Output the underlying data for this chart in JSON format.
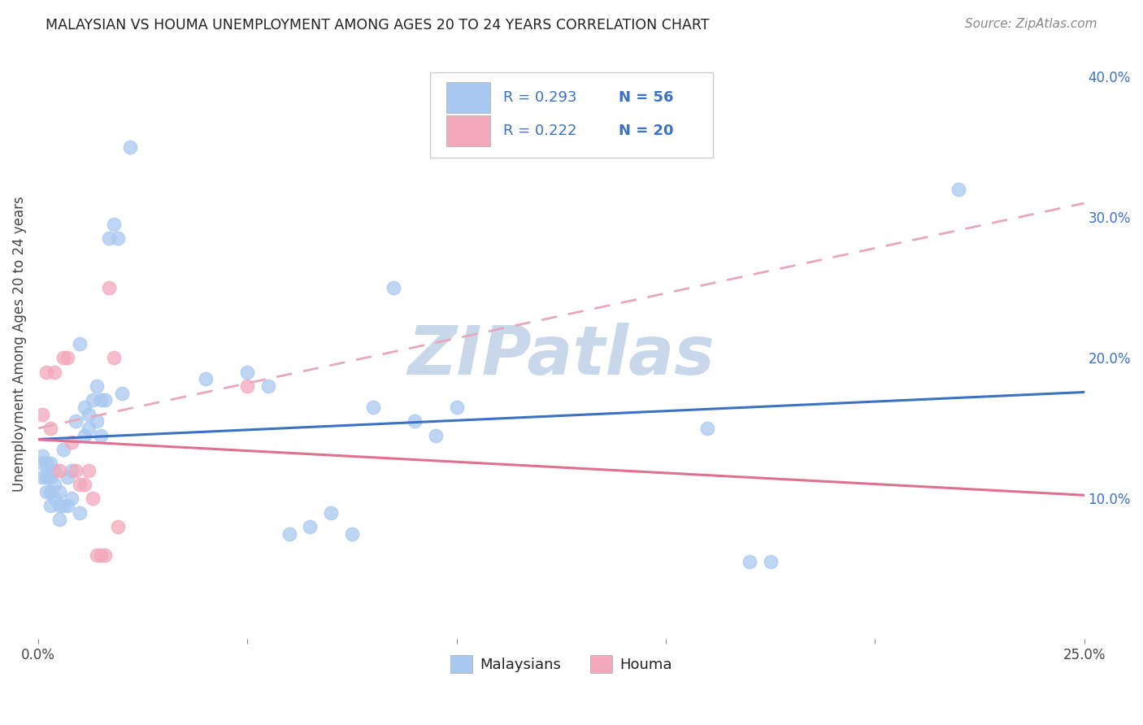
{
  "title": "MALAYSIAN VS HOUMA UNEMPLOYMENT AMONG AGES 20 TO 24 YEARS CORRELATION CHART",
  "source": "Source: ZipAtlas.com",
  "ylabel": "Unemployment Among Ages 20 to 24 years",
  "x_min": 0.0,
  "x_max": 0.25,
  "y_min": 0.0,
  "y_max": 0.42,
  "x_ticks": [
    0.0,
    0.05,
    0.1,
    0.15,
    0.2,
    0.25
  ],
  "x_tick_labels": [
    "0.0%",
    "",
    "",
    "",
    "",
    "25.0%"
  ],
  "y_ticks": [
    0.0,
    0.1,
    0.2,
    0.3,
    0.4
  ],
  "y_tick_labels_right": [
    "",
    "10.0%",
    "20.0%",
    "30.0%",
    "40.0%"
  ],
  "malaysian_R": 0.293,
  "malaysian_N": 56,
  "houma_R": 0.222,
  "houma_N": 20,
  "malaysian_color": "#A8C8F0",
  "houma_color": "#F4A8BC",
  "malaysian_line_color": "#3B72C4",
  "houma_line_color": "#E07090",
  "houma_dashed_color": "#E8A8BC",
  "background_color": "#FFFFFF",
  "watermark_text": "ZIPatlas",
  "watermark_color": "#C8D8EA",
  "malaysian_x": [
    0.001,
    0.001,
    0.001,
    0.002,
    0.002,
    0.002,
    0.003,
    0.003,
    0.003,
    0.003,
    0.004,
    0.004,
    0.004,
    0.005,
    0.005,
    0.005,
    0.006,
    0.006,
    0.007,
    0.007,
    0.008,
    0.008,
    0.009,
    0.01,
    0.01,
    0.011,
    0.011,
    0.012,
    0.012,
    0.013,
    0.014,
    0.014,
    0.015,
    0.015,
    0.016,
    0.017,
    0.018,
    0.019,
    0.02,
    0.022,
    0.04,
    0.05,
    0.055,
    0.06,
    0.065,
    0.07,
    0.075,
    0.08,
    0.085,
    0.09,
    0.095,
    0.1,
    0.16,
    0.17,
    0.175,
    0.22
  ],
  "malaysian_y": [
    0.115,
    0.125,
    0.13,
    0.105,
    0.115,
    0.125,
    0.095,
    0.105,
    0.115,
    0.125,
    0.1,
    0.11,
    0.12,
    0.085,
    0.095,
    0.105,
    0.095,
    0.135,
    0.095,
    0.115,
    0.1,
    0.12,
    0.155,
    0.09,
    0.21,
    0.145,
    0.165,
    0.15,
    0.16,
    0.17,
    0.155,
    0.18,
    0.145,
    0.17,
    0.17,
    0.285,
    0.295,
    0.285,
    0.175,
    0.35,
    0.185,
    0.19,
    0.18,
    0.075,
    0.08,
    0.09,
    0.075,
    0.165,
    0.25,
    0.155,
    0.145,
    0.165,
    0.15,
    0.055,
    0.055,
    0.32
  ],
  "houma_x": [
    0.001,
    0.002,
    0.003,
    0.004,
    0.005,
    0.006,
    0.007,
    0.008,
    0.009,
    0.01,
    0.011,
    0.012,
    0.013,
    0.014,
    0.015,
    0.016,
    0.017,
    0.018,
    0.019,
    0.05
  ],
  "houma_y": [
    0.16,
    0.19,
    0.15,
    0.19,
    0.12,
    0.2,
    0.2,
    0.14,
    0.12,
    0.11,
    0.11,
    0.12,
    0.1,
    0.06,
    0.06,
    0.06,
    0.25,
    0.2,
    0.08,
    0.18
  ],
  "legend_entries": [
    "Malaysians",
    "Houma"
  ],
  "legend_box_color": "#FFFFFF",
  "legend_box_edge": "#CCCCCC",
  "legend_text_color": "#3B72C4",
  "legend_label_color": "#222222"
}
